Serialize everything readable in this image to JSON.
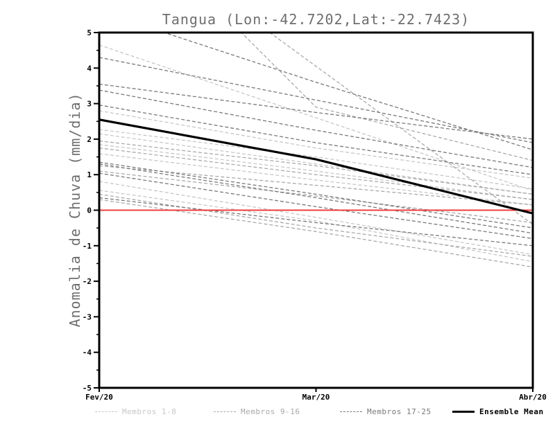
{
  "title": "Tangua (Lon:-42.7202,Lat:-22.7423)",
  "axes": {
    "ylabel": "Anomalia de Chuva (mm/dia)"
  },
  "legend": {
    "items": [
      {
        "label": "Membros 1-8",
        "color": "#c7c7c7",
        "style": "dashed"
      },
      {
        "label": "Membros 9-16",
        "color": "#a9a9a9",
        "style": "dashed"
      },
      {
        "label": "Membros 17-25",
        "color": "#787878",
        "style": "dashed"
      },
      {
        "label": "Ensemble Mean",
        "color": "#000000",
        "style": "solid"
      }
    ]
  },
  "chart_data": {
    "type": "line",
    "title": "Tangua (Lon:-42.7202,Lat:-22.7423)",
    "x": [
      "Fev/20",
      "Mar/20",
      "Abr/20"
    ],
    "ylabel": "Anomalia de Chuva (mm/dia)",
    "ylim": [
      -5,
      5
    ],
    "yticks": [
      "5",
      "4",
      "3",
      "2",
      "1",
      "0",
      "-1",
      "-2",
      "-3",
      "-4",
      "-5"
    ],
    "ytick_minor_step": 0.5,
    "grid": false,
    "legend_position": "bottom",
    "zero_line": {
      "value": 0,
      "color": "#f03e3e"
    },
    "ensemble_mean": {
      "name": "Ensemble Mean",
      "color": "#000000",
      "values": [
        2.55,
        1.43,
        -0.09
      ]
    },
    "member_groups": [
      {
        "name": "Membros 1-8",
        "color": "#c7c7c7",
        "members": [
          [
            4.65,
            2.6,
            0.55
          ],
          [
            2.8,
            1.75,
            0.9
          ],
          [
            2.27,
            1.5,
            0.6
          ],
          [
            2.15,
            1.3,
            0.45
          ],
          [
            1.85,
            1.1,
            0.3
          ],
          [
            1.59,
            0.85,
            0.15
          ],
          [
            0.81,
            -0.2,
            -1.25
          ],
          [
            0.56,
            -0.3,
            -1.45
          ]
        ]
      },
      {
        "name": "Membros 9-16",
        "color": "#a9a9a9",
        "members": [
          [
            9.0,
            2.9,
            1.4
          ],
          [
            8.5,
            4.05,
            -0.4
          ],
          [
            1.95,
            1.25,
            0.45
          ],
          [
            1.75,
            1.0,
            0.3
          ],
          [
            1.25,
            0.7,
            0.15
          ],
          [
            1.1,
            0.4,
            -0.35
          ],
          [
            0.45,
            -0.5,
            -1.3
          ],
          [
            0.3,
            -0.6,
            -1.6
          ]
        ]
      },
      {
        "name": "Membros 17-25",
        "color": "#787878",
        "members": [
          [
            5.6,
            3.6,
            1.7
          ],
          [
            4.3,
            3.1,
            1.9
          ],
          [
            3.55,
            2.75,
            2.0
          ],
          [
            3.38,
            2.25,
            1.2
          ],
          [
            2.96,
            1.9,
            1.0
          ],
          [
            1.35,
            0.45,
            -0.5
          ],
          [
            1.3,
            0.35,
            -0.65
          ],
          [
            1.04,
            0.1,
            -0.8
          ],
          [
            0.35,
            -0.35,
            -1.0
          ]
        ]
      }
    ]
  }
}
